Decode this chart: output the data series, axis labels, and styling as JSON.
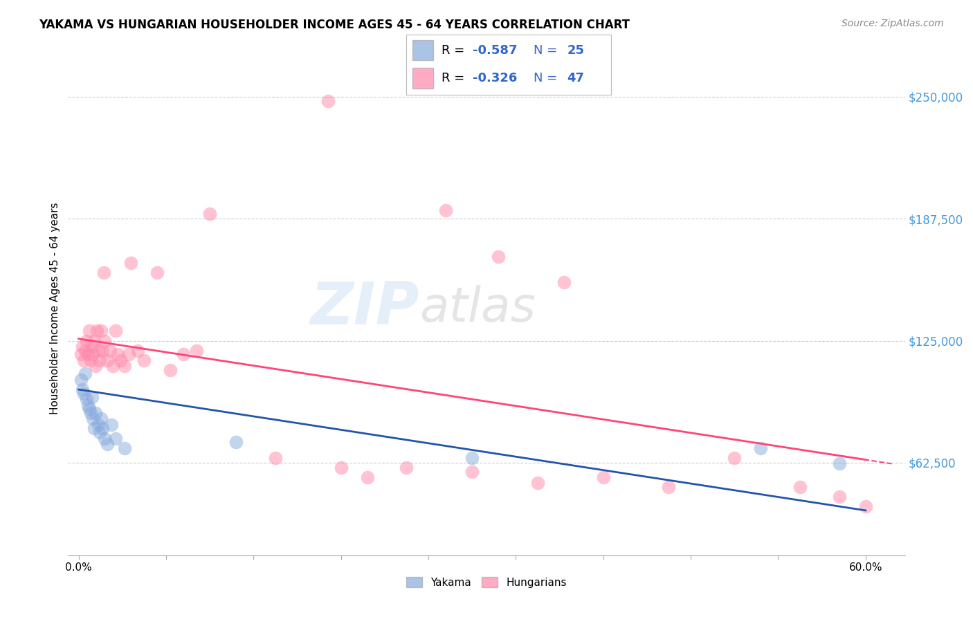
{
  "title": "YAKAMA VS HUNGARIAN HOUSEHOLDER INCOME AGES 45 - 64 YEARS CORRELATION CHART",
  "source": "Source: ZipAtlas.com",
  "ylabel": "Householder Income Ages 45 - 64 years",
  "ytick_labels": [
    "$62,500",
    "$125,000",
    "$187,500",
    "$250,000"
  ],
  "ytick_values": [
    62500,
    125000,
    187500,
    250000
  ],
  "ymin": 15000,
  "ymax": 268000,
  "xmin": -0.008,
  "xmax": 0.63,
  "color_yakama": "#88AADD",
  "color_hungarian": "#FF88AA",
  "color_line_yakama": "#2255AA",
  "color_line_hungarian": "#FF4477",
  "watermark_zip": "ZIP",
  "watermark_atlas": "atlas",
  "legend_text_color": "#3366CC",
  "legend_label_color": "#000000",
  "yakama_x": [
    0.002,
    0.003,
    0.004,
    0.005,
    0.006,
    0.007,
    0.008,
    0.009,
    0.01,
    0.011,
    0.012,
    0.013,
    0.015,
    0.016,
    0.017,
    0.018,
    0.02,
    0.022,
    0.025,
    0.028,
    0.035,
    0.12,
    0.3,
    0.52,
    0.58
  ],
  "yakama_y": [
    105000,
    100000,
    98000,
    108000,
    95000,
    92000,
    90000,
    88000,
    96000,
    85000,
    80000,
    88000,
    82000,
    78000,
    85000,
    80000,
    75000,
    72000,
    82000,
    75000,
    70000,
    73000,
    65000,
    70000,
    62000
  ],
  "hungarian_x": [
    0.002,
    0.003,
    0.004,
    0.005,
    0.006,
    0.007,
    0.008,
    0.009,
    0.01,
    0.011,
    0.012,
    0.013,
    0.014,
    0.015,
    0.016,
    0.017,
    0.018,
    0.019,
    0.02,
    0.022,
    0.024,
    0.026,
    0.028,
    0.03,
    0.032,
    0.035,
    0.038,
    0.04,
    0.045,
    0.05,
    0.06,
    0.07,
    0.08,
    0.09,
    0.1,
    0.15,
    0.2,
    0.22,
    0.25,
    0.3,
    0.35,
    0.4,
    0.45,
    0.5,
    0.55,
    0.58,
    0.6
  ],
  "hungarian_y": [
    118000,
    122000,
    115000,
    120000,
    125000,
    118000,
    130000,
    115000,
    122000,
    118000,
    125000,
    112000,
    130000,
    120000,
    115000,
    130000,
    120000,
    160000,
    125000,
    115000,
    120000,
    112000,
    130000,
    118000,
    115000,
    112000,
    118000,
    165000,
    120000,
    115000,
    160000,
    110000,
    118000,
    120000,
    190000,
    65000,
    60000,
    55000,
    60000,
    58000,
    52000,
    55000,
    50000,
    65000,
    50000,
    45000,
    40000
  ],
  "hungarian_outlier_x": [
    0.19
  ],
  "hungarian_outlier_y": [
    248000
  ],
  "hungarian_high1_x": [
    0.28
  ],
  "hungarian_high1_y": [
    192000
  ],
  "hungarian_high2_x": [
    0.32
  ],
  "hungarian_high2_y": [
    168000
  ],
  "hungarian_high3_x": [
    0.37
  ],
  "hungarian_high3_y": [
    155000
  ]
}
